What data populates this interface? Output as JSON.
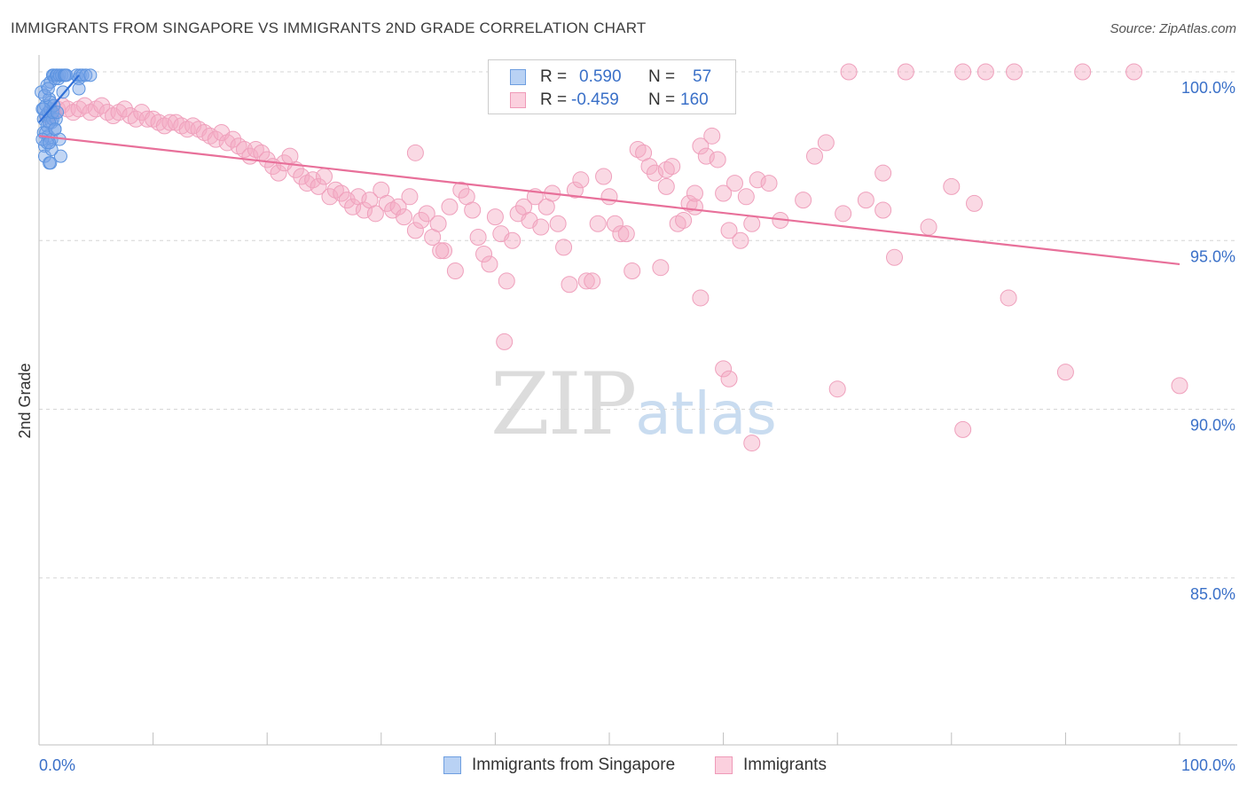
{
  "header": {
    "title": "IMMIGRANTS FROM SINGAPORE VS IMMIGRANTS 2ND GRADE CORRELATION CHART",
    "source": "Source: ZipAtlas.com"
  },
  "watermark": {
    "zip": "ZIP",
    "atlas": "atlas"
  },
  "legend": {
    "rows": [
      {
        "r_label": "R =",
        "r_value": "0.590",
        "n_label": "N =",
        "n_value": "57"
      },
      {
        "r_label": "R =",
        "r_value": "-0.459",
        "n_label": "N =",
        "n_value": "160"
      }
    ]
  },
  "bottom_legend": {
    "series1": "Immigrants from Singapore",
    "series2": "Immigrants"
  },
  "chart_data": {
    "type": "scatter",
    "title": "IMMIGRANTS FROM SINGAPORE VS IMMIGRANTS 2ND GRADE CORRELATION CHART",
    "xlabel": "",
    "ylabel": "2nd Grade",
    "xlim": [
      0,
      100
    ],
    "ylim": [
      80.5,
      100.5
    ],
    "y_ticks": [
      85,
      90,
      95,
      100
    ],
    "y_tick_labels": [
      "85.0%",
      "90.0%",
      "95.0%",
      "100.0%"
    ],
    "x_tick_labels": [
      "0.0%",
      "100.0%"
    ],
    "grid": "horizontal dashed",
    "legend_position": "top-center",
    "colors": {
      "singapore": "#5b93e0",
      "immigrants": "#f0a0bc",
      "singapore_line": "#2f6fd6",
      "immigrants_line": "#e8709a",
      "axis_label": "#3a70c8"
    },
    "series": [
      {
        "name": "Immigrants from Singapore",
        "r": 0.59,
        "n": 57,
        "trend": {
          "x": [
            0.0,
            3.5
          ],
          "y": [
            98.5,
            99.9
          ]
        },
        "points": [
          [
            0.2,
            99.4
          ],
          [
            0.3,
            98.9
          ],
          [
            0.4,
            98.6
          ],
          [
            0.4,
            98.2
          ],
          [
            0.5,
            97.8
          ],
          [
            0.5,
            97.5
          ],
          [
            0.6,
            98.7
          ],
          [
            0.6,
            99.0
          ],
          [
            0.7,
            99.6
          ],
          [
            0.7,
            98.4
          ],
          [
            0.8,
            98.1
          ],
          [
            0.8,
            98.8
          ],
          [
            0.9,
            99.2
          ],
          [
            0.9,
            97.3
          ],
          [
            1.0,
            98.9
          ],
          [
            1.0,
            99.7
          ],
          [
            1.1,
            98.5
          ],
          [
            1.1,
            98.0
          ],
          [
            1.2,
            99.9
          ],
          [
            1.2,
            98.6
          ],
          [
            1.3,
            99.9
          ],
          [
            1.4,
            99.8
          ],
          [
            1.4,
            98.3
          ],
          [
            1.5,
            99.9
          ],
          [
            1.5,
            98.6
          ],
          [
            1.6,
            99.9
          ],
          [
            1.7,
            99.8
          ],
          [
            1.8,
            99.9
          ],
          [
            1.8,
            98.0
          ],
          [
            1.9,
            97.5
          ],
          [
            2.0,
            99.9
          ],
          [
            2.1,
            99.4
          ],
          [
            2.2,
            99.9
          ],
          [
            2.3,
            99.9
          ],
          [
            2.4,
            99.9
          ],
          [
            3.3,
            99.9
          ],
          [
            3.5,
            99.8
          ],
          [
            3.6,
            99.9
          ],
          [
            3.8,
            99.9
          ],
          [
            4.1,
            99.9
          ],
          [
            4.5,
            99.9
          ],
          [
            1.0,
            99.1
          ],
          [
            0.6,
            98.2
          ],
          [
            0.9,
            98.5
          ],
          [
            1.2,
            98.8
          ],
          [
            0.5,
            99.3
          ],
          [
            0.8,
            99.5
          ],
          [
            1.3,
            99.0
          ],
          [
            0.7,
            97.9
          ],
          [
            1.6,
            98.8
          ],
          [
            0.4,
            98.9
          ],
          [
            1.1,
            97.7
          ],
          [
            0.3,
            98.0
          ],
          [
            1.4,
            98.3
          ],
          [
            0.9,
            97.9
          ],
          [
            1.0,
            97.3
          ],
          [
            3.5,
            99.5
          ]
        ]
      },
      {
        "name": "Immigrants",
        "r": -0.459,
        "n": 160,
        "trend": {
          "x": [
            0.0,
            100.0
          ],
          "y": [
            98.1,
            94.3
          ]
        },
        "points": [
          [
            0.8,
            98.7
          ],
          [
            1.2,
            98.8
          ],
          [
            1.6,
            98.9
          ],
          [
            2.0,
            99.0
          ],
          [
            2.5,
            98.9
          ],
          [
            3.0,
            98.8
          ],
          [
            3.5,
            98.9
          ],
          [
            4.0,
            99.0
          ],
          [
            4.5,
            98.8
          ],
          [
            5.0,
            98.9
          ],
          [
            5.5,
            99.0
          ],
          [
            6.0,
            98.8
          ],
          [
            6.5,
            98.7
          ],
          [
            7.0,
            98.8
          ],
          [
            7.5,
            98.9
          ],
          [
            8.0,
            98.7
          ],
          [
            8.5,
            98.6
          ],
          [
            9.0,
            98.8
          ],
          [
            9.5,
            98.6
          ],
          [
            10.0,
            98.6
          ],
          [
            10.5,
            98.5
          ],
          [
            11.0,
            98.4
          ],
          [
            11.5,
            98.5
          ],
          [
            12.0,
            98.5
          ],
          [
            12.5,
            98.4
          ],
          [
            13.0,
            98.3
          ],
          [
            13.5,
            98.4
          ],
          [
            14.0,
            98.3
          ],
          [
            14.5,
            98.2
          ],
          [
            15.0,
            98.1
          ],
          [
            15.5,
            98.0
          ],
          [
            16.0,
            98.2
          ],
          [
            16.5,
            97.9
          ],
          [
            17.0,
            98.0
          ],
          [
            17.5,
            97.8
          ],
          [
            18.0,
            97.7
          ],
          [
            18.5,
            97.5
          ],
          [
            19.0,
            97.7
          ],
          [
            19.5,
            97.6
          ],
          [
            20.0,
            97.4
          ],
          [
            20.5,
            97.2
          ],
          [
            21.0,
            97.0
          ],
          [
            21.5,
            97.3
          ],
          [
            22.0,
            97.5
          ],
          [
            22.5,
            97.1
          ],
          [
            23.0,
            96.9
          ],
          [
            23.5,
            96.7
          ],
          [
            24.0,
            96.8
          ],
          [
            24.5,
            96.6
          ],
          [
            25.0,
            96.9
          ],
          [
            25.5,
            96.3
          ],
          [
            26.0,
            96.5
          ],
          [
            26.5,
            96.4
          ],
          [
            27.0,
            96.2
          ],
          [
            27.5,
            96.0
          ],
          [
            28.0,
            96.3
          ],
          [
            28.5,
            95.9
          ],
          [
            29.0,
            96.2
          ],
          [
            29.5,
            95.8
          ],
          [
            30.0,
            96.5
          ],
          [
            30.5,
            96.1
          ],
          [
            31.0,
            95.9
          ],
          [
            31.5,
            96.0
          ],
          [
            32.0,
            95.7
          ],
          [
            32.5,
            96.3
          ],
          [
            33.0,
            95.3
          ],
          [
            33.5,
            95.6
          ],
          [
            34.0,
            95.8
          ],
          [
            34.5,
            95.1
          ],
          [
            35.0,
            95.5
          ],
          [
            35.5,
            94.7
          ],
          [
            36.0,
            96.0
          ],
          [
            36.5,
            94.1
          ],
          [
            37.0,
            96.5
          ],
          [
            37.5,
            96.3
          ],
          [
            38.0,
            95.9
          ],
          [
            38.5,
            95.1
          ],
          [
            39.0,
            94.6
          ],
          [
            39.5,
            94.3
          ],
          [
            40.0,
            95.7
          ],
          [
            40.5,
            95.2
          ],
          [
            41.0,
            93.8
          ],
          [
            41.5,
            95.0
          ],
          [
            42.0,
            95.8
          ],
          [
            42.5,
            96.0
          ],
          [
            43.0,
            95.6
          ],
          [
            43.5,
            96.3
          ],
          [
            44.0,
            95.4
          ],
          [
            44.5,
            96.0
          ],
          [
            45.0,
            96.4
          ],
          [
            45.5,
            95.5
          ],
          [
            46.0,
            94.8
          ],
          [
            46.5,
            93.7
          ],
          [
            47.0,
            96.5
          ],
          [
            47.5,
            96.8
          ],
          [
            48.0,
            93.8
          ],
          [
            48.5,
            93.8
          ],
          [
            49.0,
            95.5
          ],
          [
            49.5,
            96.9
          ],
          [
            50.0,
            96.3
          ],
          [
            50.5,
            95.5
          ],
          [
            51.0,
            95.2
          ],
          [
            51.5,
            95.2
          ],
          [
            52.0,
            94.1
          ],
          [
            52.5,
            97.7
          ],
          [
            53.0,
            97.6
          ],
          [
            53.5,
            97.2
          ],
          [
            54.0,
            97.0
          ],
          [
            54.5,
            94.2
          ],
          [
            55.0,
            97.1
          ],
          [
            55.5,
            97.2
          ],
          [
            56.0,
            95.5
          ],
          [
            56.5,
            95.6
          ],
          [
            57.0,
            96.1
          ],
          [
            57.5,
            96.0
          ],
          [
            58.0,
            97.8
          ],
          [
            58.5,
            97.5
          ],
          [
            59.0,
            98.1
          ],
          [
            59.5,
            97.4
          ],
          [
            60.0,
            96.4
          ],
          [
            60.5,
            95.3
          ],
          [
            61.0,
            96.7
          ],
          [
            61.5,
            95.0
          ],
          [
            62.0,
            96.3
          ],
          [
            62.5,
            95.5
          ],
          [
            63.0,
            96.8
          ],
          [
            35.2,
            94.7
          ],
          [
            40.8,
            92.0
          ],
          [
            71.0,
            100.0
          ],
          [
            76.0,
            100.0
          ],
          [
            81.0,
            100.0
          ],
          [
            83.0,
            100.0
          ],
          [
            85.5,
            100.0
          ],
          [
            91.5,
            100.0
          ],
          [
            96.0,
            100.0
          ],
          [
            60.0,
            91.2
          ],
          [
            70.0,
            90.6
          ],
          [
            58.0,
            93.3
          ],
          [
            65.0,
            95.6
          ],
          [
            68.0,
            97.5
          ],
          [
            75.0,
            94.5
          ],
          [
            80.0,
            96.6
          ],
          [
            82.0,
            96.1
          ],
          [
            55.0,
            96.6
          ],
          [
            64.0,
            96.7
          ],
          [
            67.0,
            96.2
          ],
          [
            70.5,
            95.8
          ],
          [
            72.5,
            96.2
          ],
          [
            74.0,
            95.9
          ],
          [
            78.0,
            95.4
          ],
          [
            62.5,
            89.0
          ],
          [
            81.0,
            89.4
          ],
          [
            90.0,
            91.1
          ],
          [
            100.0,
            90.7
          ],
          [
            85.0,
            93.3
          ],
          [
            74.0,
            97.0
          ],
          [
            69.0,
            97.9
          ],
          [
            60.5,
            90.9
          ],
          [
            33.0,
            97.6
          ],
          [
            57.5,
            96.4
          ]
        ]
      }
    ]
  }
}
